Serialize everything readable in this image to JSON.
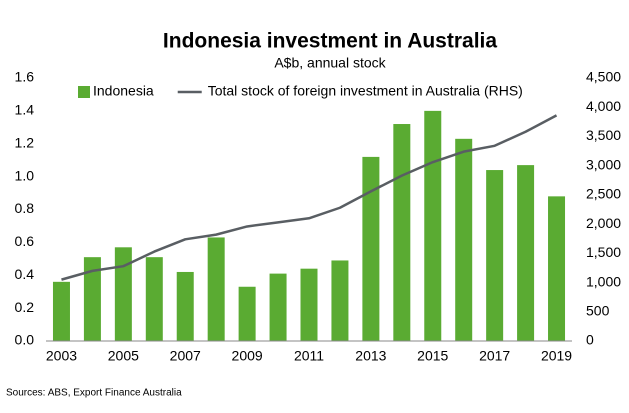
{
  "chart_data": {
    "type": "bar-line",
    "title": "Indonesia investment in Australia",
    "subtitle": "A$b, annual stock",
    "source": "Sources: ABS, Export Finance Australia",
    "categories": [
      "2003",
      null,
      "2005",
      null,
      "2007",
      null,
      "2009",
      null,
      "2011",
      null,
      "2013",
      null,
      "2015",
      null,
      "2017",
      null,
      "2019"
    ],
    "series": [
      {
        "name": "Indonesia",
        "type": "bar",
        "color": "#5aab32",
        "values": [
          0.36,
          0.51,
          0.57,
          0.51,
          0.42,
          0.63,
          0.33,
          0.41,
          0.44,
          0.49,
          1.12,
          1.32,
          1.4,
          1.23,
          1.04,
          1.07,
          0.88
        ]
      },
      {
        "name": "Total stock of foreign investment in Australia (RHS)",
        "type": "line",
        "axis": "y2",
        "color": "#595e63",
        "values": [
          1050,
          1200,
          1280,
          1530,
          1740,
          1820,
          1960,
          2030,
          2100,
          2280,
          2560,
          2830,
          3060,
          3240,
          3340,
          3580,
          3860
        ]
      }
    ],
    "ylim": [
      0,
      1.6
    ],
    "yticks": [
      {
        "value": 0,
        "label": "0.0"
      },
      0.2,
      0.4,
      0.6,
      0.8,
      {
        "value": 1,
        "label": "1.0"
      },
      1.2,
      1.4,
      1.6
    ],
    "y2lim": [
      0,
      4500
    ],
    "y2ticks": [
      0,
      500,
      {
        "value": 1000,
        "label": "1,000"
      },
      {
        "value": 1500,
        "label": "1,500"
      },
      {
        "value": 2000,
        "label": "2,000"
      },
      {
        "value": 2500,
        "label": "2,500"
      },
      {
        "value": 3000,
        "label": "3,000"
      },
      {
        "value": 3500,
        "label": "3,500"
      },
      {
        "value": 4000,
        "label": "4,000"
      },
      {
        "value": 4500,
        "label": "4,500"
      }
    ],
    "legend": "top"
  }
}
